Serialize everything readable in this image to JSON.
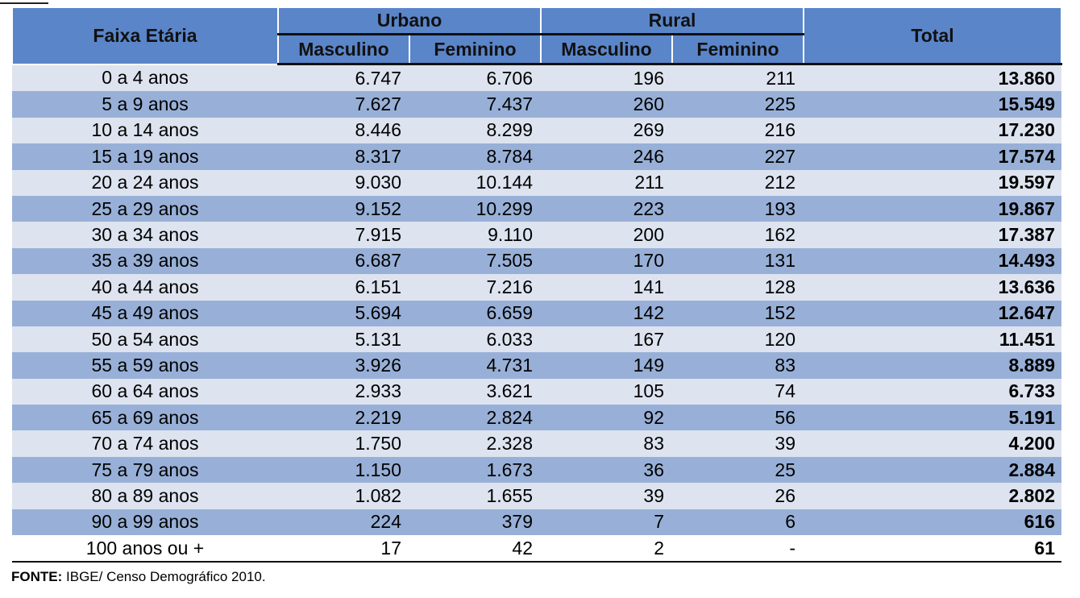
{
  "table": {
    "headers": {
      "faixa_etaria": "Faixa Etária",
      "urbano": "Urbano",
      "rural": "Rural",
      "total": "Total",
      "masculino": "Masculino",
      "feminino": "Feminino"
    },
    "rows": [
      {
        "faixa": "0 a 4 anos",
        "um": "6.747",
        "uf": "6.706",
        "rm": "196",
        "rf": "211",
        "total": "13.860"
      },
      {
        "faixa": "5 a 9 anos",
        "um": "7.627",
        "uf": "7.437",
        "rm": "260",
        "rf": "225",
        "total": "15.549"
      },
      {
        "faixa": "10 a 14 anos",
        "um": "8.446",
        "uf": "8.299",
        "rm": "269",
        "rf": "216",
        "total": "17.230"
      },
      {
        "faixa": "15 a 19 anos",
        "um": "8.317",
        "uf": "8.784",
        "rm": "246",
        "rf": "227",
        "total": "17.574"
      },
      {
        "faixa": "20 a 24 anos",
        "um": "9.030",
        "uf": "10.144",
        "rm": "211",
        "rf": "212",
        "total": "19.597"
      },
      {
        "faixa": "25 a 29 anos",
        "um": "9.152",
        "uf": "10.299",
        "rm": "223",
        "rf": "193",
        "total": "19.867"
      },
      {
        "faixa": "30 a 34 anos",
        "um": "7.915",
        "uf": "9.110",
        "rm": "200",
        "rf": "162",
        "total": "17.387"
      },
      {
        "faixa": "35 a 39 anos",
        "um": "6.687",
        "uf": "7.505",
        "rm": "170",
        "rf": "131",
        "total": "14.493"
      },
      {
        "faixa": "40 a 44 anos",
        "um": "6.151",
        "uf": "7.216",
        "rm": "141",
        "rf": "128",
        "total": "13.636"
      },
      {
        "faixa": "45 a 49 anos",
        "um": "5.694",
        "uf": "6.659",
        "rm": "142",
        "rf": "152",
        "total": "12.647"
      },
      {
        "faixa": "50 a 54 anos",
        "um": "5.131",
        "uf": "6.033",
        "rm": "167",
        "rf": "120",
        "total": "11.451"
      },
      {
        "faixa": "55 a 59 anos",
        "um": "3.926",
        "uf": "4.731",
        "rm": "149",
        "rf": "83",
        "total": "8.889"
      },
      {
        "faixa": "60 a 64 anos",
        "um": "2.933",
        "uf": "3.621",
        "rm": "105",
        "rf": "74",
        "total": "6.733"
      },
      {
        "faixa": "65 a 69 anos",
        "um": "2.219",
        "uf": "2.824",
        "rm": "92",
        "rf": "56",
        "total": "5.191"
      },
      {
        "faixa": "70 a 74 anos",
        "um": "1.750",
        "uf": "2.328",
        "rm": "83",
        "rf": "39",
        "total": "4.200"
      },
      {
        "faixa": "75 a 79 anos",
        "um": "1.150",
        "uf": "1.673",
        "rm": "36",
        "rf": "25",
        "total": "2.884"
      },
      {
        "faixa": "80 a 89 anos",
        "um": "1.082",
        "uf": "1.655",
        "rm": "39",
        "rf": "26",
        "total": "2.802"
      },
      {
        "faixa": "90 a 99 anos",
        "um": "224",
        "uf": "379",
        "rm": "7",
        "rf": "6",
        "total": "616"
      },
      {
        "faixa": "100 anos ou +",
        "um": "17",
        "uf": "42",
        "rm": "2",
        "rf": "-",
        "total": "61"
      }
    ]
  },
  "source": {
    "label": "FONTE:",
    "text": " IBGE/ Censo Demográfico 2010."
  },
  "colors": {
    "header_bg": "#5b85c9",
    "row_light": "#dde3ef",
    "row_dark": "#98b0d7"
  }
}
